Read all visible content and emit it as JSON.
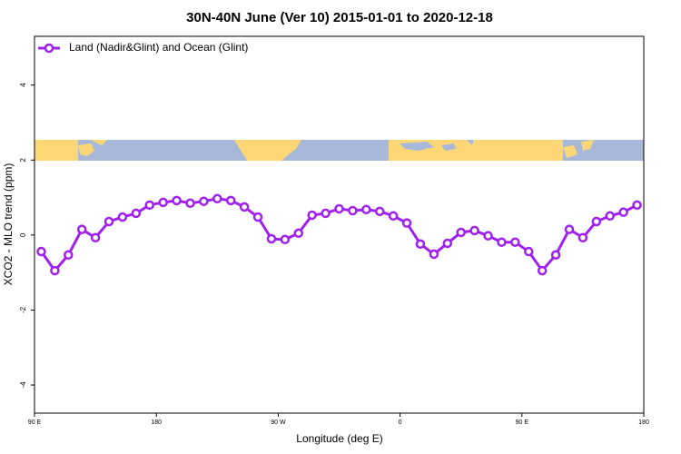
{
  "chart_data": {
    "type": "line",
    "title": "30N-40N June (Ver 10)   2015-01-01 to 2020-12-18",
    "xlabel": "Longitude (deg E)",
    "ylabel": "XCO2 - MLO trend (ppm)",
    "x": [
      95,
      105,
      115,
      125,
      135,
      145,
      155,
      165,
      175,
      185,
      195,
      205,
      215,
      225,
      235,
      245,
      255,
      265,
      275,
      285,
      295,
      305,
      315,
      325,
      335,
      345,
      355,
      365,
      375,
      385,
      395,
      405,
      415,
      425,
      435,
      445,
      455,
      465,
      475,
      485,
      495,
      505,
      515,
      525,
      535
    ],
    "series": [
      {
        "name": "Land (Nadir&Glint) and Ocean (Glint)",
        "color": "#a020f0",
        "values": [
          -0.44,
          -0.95,
          -0.53,
          0.15,
          -0.07,
          0.36,
          0.48,
          0.58,
          0.8,
          0.87,
          0.92,
          0.85,
          0.9,
          0.97,
          0.92,
          0.75,
          0.48,
          -0.1,
          -0.12,
          0.05,
          0.53,
          0.58,
          0.7,
          0.65,
          0.68,
          0.63,
          0.51,
          0.32,
          -0.24,
          -0.51,
          -0.22,
          0.07,
          0.12,
          -0.02,
          -0.19,
          -0.19,
          -0.44,
          -0.95,
          -0.53,
          0.15,
          -0.07,
          0.36,
          0.51,
          0.61,
          0.8
        ]
      }
    ],
    "xlim": [
      90,
      540
    ],
    "xticks": [
      {
        "value": 90,
        "label": "90 E"
      },
      {
        "value": 180,
        "label": "180"
      },
      {
        "value": 270,
        "label": "90 W"
      },
      {
        "value": 360,
        "label": "0"
      },
      {
        "value": 450,
        "label": "90 E"
      },
      {
        "value": 540,
        "label": "180"
      }
    ],
    "ylim": [
      -4.75,
      5.3
    ],
    "yticks": [
      -4,
      -2,
      0,
      2,
      4
    ],
    "legend": "top-left"
  }
}
